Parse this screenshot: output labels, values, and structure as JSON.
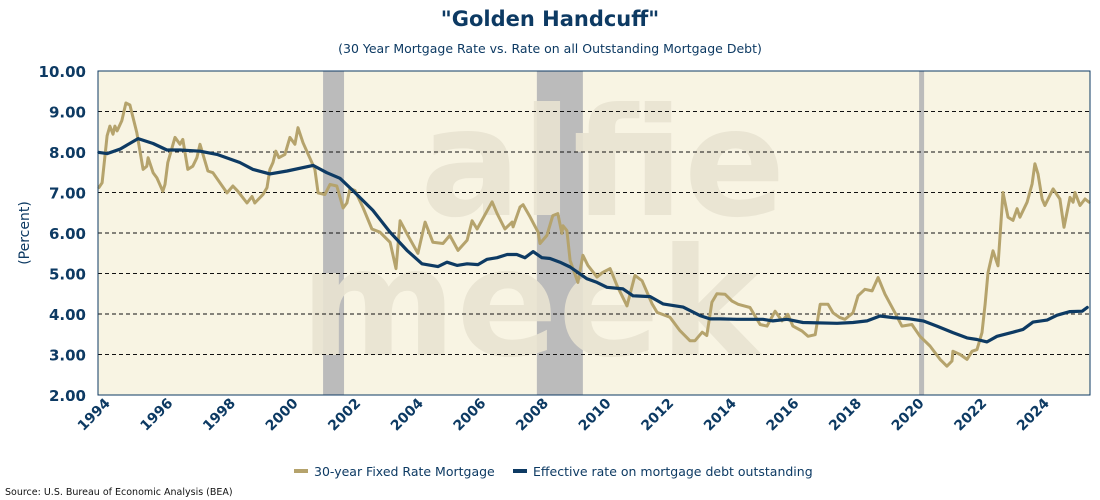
{
  "chart_data": {
    "type": "line",
    "title": "\"Golden Handcuff\"",
    "subtitle": "(30 Year Mortgage Rate vs. Rate on all Outstanding Mortgage Debt)",
    "xlabel": "",
    "ylabel": "(Percent)",
    "xlim": [
      1993.97,
      2025.66
    ],
    "ylim": [
      2,
      10
    ],
    "yticks": [
      "2.00",
      "3.00",
      "4.00",
      "5.00",
      "6.00",
      "7.00",
      "8.00",
      "9.00",
      "10.00"
    ],
    "xticks": [
      "1994",
      "1996",
      "1998",
      "2000",
      "2002",
      "2004",
      "2006",
      "2008",
      "2010",
      "2012",
      "2014",
      "2016",
      "2018",
      "2020",
      "2022",
      "2024"
    ],
    "grid": "horizontal dashed",
    "legend_position": "bottom-center",
    "recessions": [
      [
        2001.16,
        2001.83
      ],
      [
        2007.99,
        2009.46
      ],
      [
        2020.2,
        2020.36
      ]
    ],
    "series": [
      {
        "name": "30-year Fixed Rate Mortgage",
        "color": "#b5a36c",
        "x": [
          1994.0,
          1994.1,
          1994.26,
          1994.35,
          1994.45,
          1994.51,
          1994.58,
          1994.73,
          1994.86,
          1994.99,
          1995.21,
          1995.41,
          1995.53,
          1995.57,
          1995.73,
          1995.85,
          1996.04,
          1996.11,
          1996.2,
          1996.43,
          1996.59,
          1996.68,
          1996.84,
          1997.0,
          1997.13,
          1997.23,
          1997.48,
          1997.64,
          1998.09,
          1998.28,
          1998.44,
          1998.73,
          1998.89,
          1998.98,
          1999.24,
          1999.37,
          1999.46,
          1999.56,
          1999.65,
          1999.75,
          1999.94,
          2000.1,
          2000.26,
          2000.36,
          2000.52,
          2000.9,
          2001.0,
          2001.22,
          2001.38,
          2001.6,
          2001.8,
          2001.92,
          2002.02,
          2002.18,
          2002.43,
          2002.72,
          2002.98,
          2003.3,
          2003.49,
          2003.62,
          2003.87,
          2004.19,
          2004.42,
          2004.67,
          2004.99,
          2005.21,
          2005.47,
          2005.76,
          2005.92,
          2006.08,
          2006.56,
          2006.72,
          2006.97,
          2007.2,
          2007.23,
          2007.45,
          2007.55,
          2007.77,
          2008.03,
          2008.09,
          2008.31,
          2008.5,
          2008.66,
          2008.79,
          2008.82,
          2008.95,
          2009.05,
          2009.3,
          2009.46,
          2009.62,
          2009.91,
          2010.1,
          2010.33,
          2010.55,
          2010.87,
          2011.12,
          2011.35,
          2011.67,
          2011.83,
          2012.24,
          2012.56,
          2012.88,
          2013.04,
          2013.27,
          2013.42,
          2013.58,
          2013.74,
          2014.0,
          2014.22,
          2014.42,
          2014.8,
          2015.12,
          2015.34,
          2015.6,
          2015.82,
          2016.01,
          2016.17,
          2016.46,
          2016.65,
          2016.88,
          2017.04,
          2017.29,
          2017.45,
          2017.67,
          2017.83,
          2018.09,
          2018.25,
          2018.47,
          2018.7,
          2018.89,
          2019.11,
          2019.43,
          2019.65,
          2019.97,
          2020.23,
          2020.55,
          2020.87,
          2021.09,
          2021.25,
          2021.28,
          2021.51,
          2021.73,
          2021.89,
          2022.05,
          2022.21,
          2022.31,
          2022.4,
          2022.56,
          2022.72,
          2022.88,
          2023.04,
          2023.2,
          2023.33,
          2023.42,
          2023.65,
          2023.81,
          2023.9,
          2024.0,
          2024.13,
          2024.22,
          2024.32,
          2024.48,
          2024.7,
          2024.83,
          2025.02,
          2025.12,
          2025.18,
          2025.34,
          2025.5,
          2025.63
        ],
        "values": [
          7.12,
          7.24,
          8.4,
          8.64,
          8.44,
          8.64,
          8.52,
          8.77,
          9.21,
          9.16,
          8.48,
          7.57,
          7.65,
          7.86,
          7.49,
          7.36,
          7.03,
          7.2,
          7.74,
          8.36,
          8.19,
          8.31,
          7.57,
          7.65,
          7.86,
          8.19,
          7.53,
          7.49,
          6.99,
          7.16,
          7.03,
          6.74,
          6.9,
          6.74,
          6.95,
          7.12,
          7.57,
          7.74,
          8.02,
          7.86,
          7.94,
          8.36,
          8.19,
          8.6,
          8.23,
          7.57,
          6.99,
          6.95,
          7.2,
          7.16,
          6.62,
          6.74,
          7.1,
          7.05,
          6.64,
          6.1,
          6.02,
          5.77,
          5.12,
          6.3,
          5.94,
          5.5,
          6.27,
          5.77,
          5.74,
          5.94,
          5.57,
          5.82,
          6.3,
          6.1,
          6.77,
          6.48,
          6.1,
          6.27,
          6.15,
          6.64,
          6.7,
          6.4,
          6.02,
          5.74,
          5.94,
          6.43,
          6.48,
          5.99,
          6.18,
          6.06,
          5.32,
          4.78,
          5.45,
          5.2,
          4.91,
          5.03,
          5.12,
          4.7,
          4.2,
          4.95,
          4.82,
          4.25,
          4.04,
          3.92,
          3.59,
          3.34,
          3.34,
          3.55,
          3.47,
          4.29,
          4.5,
          4.49,
          4.32,
          4.24,
          4.16,
          3.74,
          3.7,
          4.07,
          3.83,
          3.99,
          3.7,
          3.58,
          3.45,
          3.49,
          4.24,
          4.24,
          4.03,
          3.91,
          3.87,
          4.03,
          4.45,
          4.61,
          4.57,
          4.9,
          4.49,
          4.03,
          3.7,
          3.74,
          3.45,
          3.21,
          2.88,
          2.71,
          2.84,
          3.08,
          3.0,
          2.88,
          3.08,
          3.12,
          3.54,
          4.24,
          5.02,
          5.56,
          5.19,
          7.0,
          6.39,
          6.31,
          6.6,
          6.39,
          6.76,
          7.21,
          7.71,
          7.46,
          6.84,
          6.68,
          6.84,
          7.09,
          6.84,
          6.14,
          6.88,
          6.76,
          7.0,
          6.68,
          6.84,
          6.76
        ]
      },
      {
        "name": "Effective rate on mortgage debt outstanding",
        "color": "#0d3a63",
        "x": [
          1994.0,
          1994.26,
          1994.67,
          1995.25,
          1995.73,
          1996.17,
          1996.59,
          1997.23,
          1997.77,
          1998.5,
          1998.92,
          1999.46,
          2000.01,
          2000.84,
          2001.28,
          2001.7,
          2002.11,
          2002.75,
          2003.3,
          2003.84,
          2004.32,
          2004.83,
          2005.12,
          2005.44,
          2005.76,
          2006.11,
          2006.4,
          2006.72,
          2007.04,
          2007.35,
          2007.61,
          2007.87,
          2008.15,
          2008.41,
          2008.73,
          2009.05,
          2009.59,
          2009.91,
          2010.23,
          2010.74,
          2011.06,
          2011.61,
          2012.02,
          2012.66,
          2013.2,
          2013.52,
          2013.84,
          2014.38,
          2015.21,
          2015.53,
          2015.98,
          2016.49,
          2017.58,
          2018.09,
          2018.54,
          2018.95,
          2019.37,
          2019.91,
          2020.33,
          2020.77,
          2021.28,
          2021.73,
          2022.05,
          2022.37,
          2022.69,
          2023.2,
          2023.52,
          2023.84,
          2024.29,
          2024.61,
          2025.02,
          2025.41,
          2025.57
        ],
        "values": [
          7.99,
          7.96,
          8.07,
          8.33,
          8.21,
          8.05,
          8.05,
          8.02,
          7.94,
          7.74,
          7.57,
          7.46,
          7.53,
          7.67,
          7.49,
          7.35,
          7.05,
          6.56,
          6.02,
          5.57,
          5.24,
          5.17,
          5.28,
          5.2,
          5.24,
          5.22,
          5.35,
          5.39,
          5.47,
          5.47,
          5.39,
          5.54,
          5.39,
          5.37,
          5.28,
          5.16,
          4.87,
          4.78,
          4.66,
          4.62,
          4.45,
          4.43,
          4.25,
          4.17,
          3.96,
          3.88,
          3.88,
          3.87,
          3.87,
          3.83,
          3.87,
          3.79,
          3.77,
          3.79,
          3.83,
          3.95,
          3.91,
          3.88,
          3.83,
          3.7,
          3.54,
          3.41,
          3.37,
          3.31,
          3.45,
          3.55,
          3.62,
          3.8,
          3.85,
          3.97,
          4.06,
          4.07,
          4.16
        ]
      }
    ],
    "colors": {
      "plot_bg": "#f8f4e3",
      "recession": "#bbbbbb",
      "axis": "#0d3a63"
    },
    "source": "Source: U.S. Bureau of Economic Analysis (BEA)",
    "watermark": "alfie meek"
  }
}
